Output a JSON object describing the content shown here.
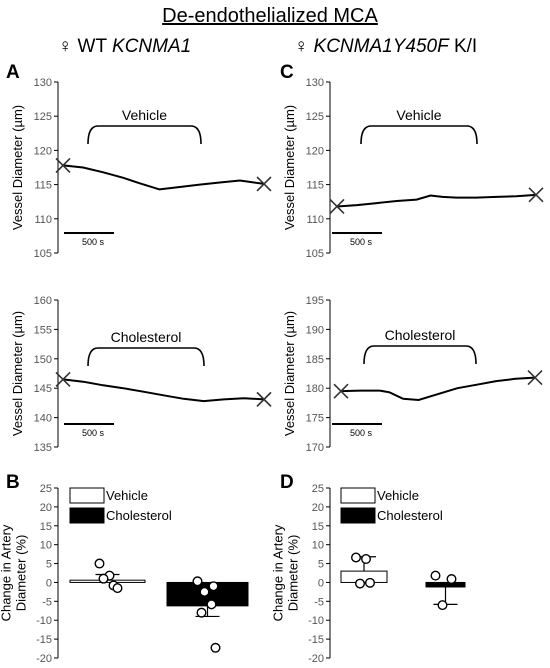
{
  "figure": {
    "title": "De-endothelialized MCA",
    "left_subtitle": {
      "symbol": "♀",
      "plain": "WT ",
      "italic": "KCNMA1",
      "suffix": ""
    },
    "right_subtitle": {
      "symbol": "♀",
      "plain": "",
      "italic": "KCNMA1Y450F",
      "suffix": " K/I"
    },
    "panel_letters": {
      "A": "A",
      "B": "B",
      "C": "C",
      "D": "D"
    }
  },
  "chart_data": [
    {
      "id": "A-top",
      "type": "line",
      "ylabel": "Vessel Diameter (µm)",
      "ylim": [
        105,
        130
      ],
      "yticks": [
        105,
        110,
        115,
        120,
        125,
        130
      ],
      "annotation": "Vehicle",
      "scale_bar": "500 s",
      "x": [
        0,
        0.1,
        0.2,
        0.3,
        0.38,
        0.48,
        0.57,
        0.68,
        0.78,
        0.88,
        1.0
      ],
      "y": [
        117.8,
        117.5,
        116.8,
        116.0,
        115.2,
        114.3,
        114.6,
        115.0,
        115.3,
        115.6,
        115.1
      ]
    },
    {
      "id": "A-bottom",
      "type": "line",
      "ylabel": "Vessel Diameter (µm)",
      "ylim": [
        135,
        160
      ],
      "yticks": [
        135,
        140,
        145,
        150,
        155,
        160
      ],
      "annotation": "Cholesterol",
      "scale_bar": "500 s",
      "x": [
        0,
        0.1,
        0.2,
        0.3,
        0.4,
        0.5,
        0.6,
        0.7,
        0.8,
        0.9,
        1.0
      ],
      "y": [
        146.5,
        146.1,
        145.5,
        145.0,
        144.4,
        143.8,
        143.2,
        142.8,
        143.1,
        143.3,
        143.1
      ]
    },
    {
      "id": "C-top",
      "type": "line",
      "ylabel": "Vessel Diameter (µm)",
      "ylim": [
        105,
        130
      ],
      "yticks": [
        105,
        110,
        115,
        120,
        125,
        130
      ],
      "annotation": "Vehicle",
      "scale_bar": "500 s",
      "x": [
        0,
        0.1,
        0.2,
        0.3,
        0.4,
        0.47,
        0.53,
        0.6,
        0.7,
        0.8,
        0.9,
        1.0
      ],
      "y": [
        111.8,
        112.0,
        112.3,
        112.6,
        112.8,
        113.4,
        113.2,
        113.1,
        113.1,
        113.2,
        113.3,
        113.5
      ]
    },
    {
      "id": "C-bottom",
      "type": "line",
      "ylabel": "Vessel Diameter (µm)",
      "ylim": [
        170,
        195
      ],
      "yticks": [
        170,
        175,
        180,
        185,
        190,
        195
      ],
      "annotation": "Cholesterol",
      "scale_bar": "500 s",
      "x": [
        0,
        0.1,
        0.2,
        0.25,
        0.32,
        0.4,
        0.5,
        0.6,
        0.7,
        0.8,
        0.9,
        1.0
      ],
      "y": [
        179.5,
        179.6,
        179.6,
        179.3,
        178.2,
        178.0,
        179.0,
        180.0,
        180.6,
        181.2,
        181.6,
        181.8
      ]
    },
    {
      "id": "B",
      "type": "bar",
      "ylabel": "Change in Artery Diameter (%)",
      "ylim": [
        -20,
        25
      ],
      "yticks": [
        -20,
        -15,
        -10,
        -5,
        0,
        5,
        10,
        15,
        20,
        25
      ],
      "legend": [
        "Vehicle",
        "Cholesterol"
      ],
      "series": [
        {
          "name": "Vehicle",
          "value": 0.6,
          "error": 1.5,
          "points": [
            5.0,
            1.8,
            1.0,
            -0.8,
            -1.5
          ]
        },
        {
          "name": "Cholesterol",
          "value": -6.2,
          "error": 2.8,
          "points": [
            0.3,
            -1.0,
            -2.5,
            -5.8,
            -8.0,
            -17.3
          ]
        }
      ]
    },
    {
      "id": "D",
      "type": "bar",
      "ylabel": "Change in Artery Diameter (%)",
      "ylim": [
        -20,
        25
      ],
      "yticks": [
        -20,
        -15,
        -10,
        -5,
        0,
        5,
        10,
        15,
        20,
        25
      ],
      "legend": [
        "Vehicle",
        "Cholesterol"
      ],
      "series": [
        {
          "name": "Vehicle",
          "value": 3.0,
          "error": 3.8,
          "points": [
            6.6,
            6.2,
            -0.3,
            -0.1
          ]
        },
        {
          "name": "Cholesterol",
          "value": -1.2,
          "error": 4.6,
          "points": [
            1.8,
            0.9,
            -6.0
          ]
        }
      ]
    }
  ]
}
